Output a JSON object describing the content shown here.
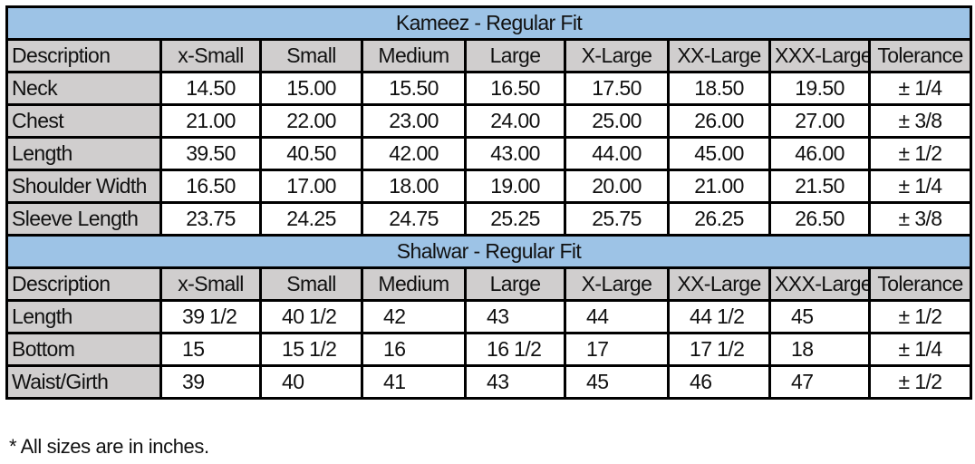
{
  "tables": [
    {
      "title": "Kameez - Regular Fit",
      "headers": [
        "Description",
        "x-Small",
        "Small",
        "Medium",
        "Large",
        "X-Large",
        "XX-Large",
        "XXX-Large",
        "Tolerance"
      ],
      "align": "center",
      "rows": [
        [
          "Neck",
          "14.50",
          "15.00",
          "15.50",
          "16.50",
          "17.50",
          "18.50",
          "19.50",
          "± 1/4"
        ],
        [
          "Chest",
          "21.00",
          "22.00",
          "23.00",
          "24.00",
          "25.00",
          "26.00",
          "27.00",
          "± 3/8"
        ],
        [
          "Length",
          "39.50",
          "40.50",
          "42.00",
          "43.00",
          "44.00",
          "45.00",
          "46.00",
          "± 1/2"
        ],
        [
          "Shoulder Width",
          "16.50",
          "17.00",
          "18.00",
          "19.00",
          "20.00",
          "21.00",
          "21.50",
          "± 1/4"
        ],
        [
          "Sleeve Length",
          "23.75",
          "24.25",
          "24.75",
          "25.25",
          "25.75",
          "26.25",
          "26.50",
          "± 3/8"
        ]
      ]
    },
    {
      "title": "Shalwar - Regular Fit",
      "headers": [
        "Description",
        "x-Small",
        "Small",
        "Medium",
        "Large",
        "X-Large",
        "XX-Large",
        "XXX-Large",
        "Tolerance"
      ],
      "align": "left",
      "rows": [
        [
          "Length",
          "39 1/2",
          "40 1/2",
          "42",
          "43",
          "44",
          "44 1/2",
          "45",
          "± 1/2"
        ],
        [
          "Bottom",
          "15",
          "15 1/2",
          "16",
          "16 1/2",
          "17",
          "17 1/2",
          "18",
          "± 1/4"
        ],
        [
          "Waist/Girth",
          "39",
          "40",
          "41",
          "43",
          "45",
          "46",
          "47",
          "± 1/2"
        ]
      ]
    }
  ],
  "footnote": "* All sizes are in inches.",
  "colors": {
    "title_bg": "#9dc3e6",
    "header_bg": "#d0cece",
    "border": "#000000"
  }
}
